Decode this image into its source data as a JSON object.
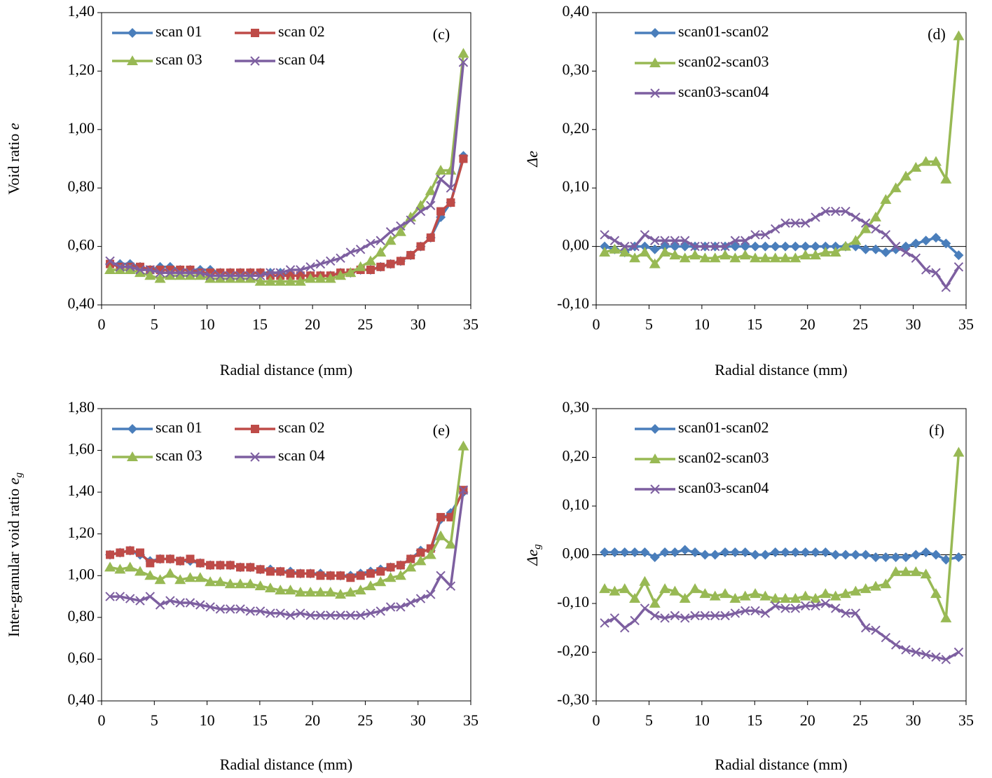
{
  "chart_data": [
    {
      "type": "line",
      "annotation": "(c)",
      "xlabel": "Radial distance (mm)",
      "ylabel": "Void ratio",
      "ylabel_symbol": "e",
      "legend_columns": 2,
      "x": [
        0.8,
        1.75,
        2.7,
        3.65,
        4.6,
        5.55,
        6.5,
        7.45,
        8.4,
        9.35,
        10.3,
        11.25,
        12.2,
        13.15,
        14.1,
        15.05,
        16.0,
        16.95,
        17.9,
        18.85,
        19.8,
        20.75,
        21.7,
        22.65,
        23.6,
        24.55,
        25.5,
        26.45,
        27.4,
        28.35,
        29.3,
        30.25,
        31.2,
        32.15,
        33.1,
        34.3
      ],
      "xlim": [
        0,
        35
      ],
      "xticks": [
        0,
        5,
        10,
        15,
        20,
        25,
        30,
        35
      ],
      "ylim": [
        0.4,
        1.4
      ],
      "yticks": [
        {
          "value": 0.4,
          "label": "0,40"
        },
        {
          "value": 0.6,
          "label": "0,60"
        },
        {
          "value": 0.8,
          "label": "0,80"
        },
        {
          "value": 1.0,
          "label": "1,00"
        },
        {
          "value": 1.2,
          "label": "1,20"
        },
        {
          "value": 1.4,
          "label": "1,40"
        }
      ],
      "series": [
        {
          "name": "scan 01",
          "color": "#4a7ebb",
          "marker": "diamond",
          "values": [
            0.54,
            0.54,
            0.54,
            0.53,
            0.52,
            0.53,
            0.53,
            0.52,
            0.52,
            0.52,
            0.52,
            0.51,
            0.51,
            0.51,
            0.51,
            0.51,
            0.51,
            0.51,
            0.5,
            0.5,
            0.5,
            0.5,
            0.5,
            0.51,
            0.51,
            0.52,
            0.52,
            0.53,
            0.54,
            0.55,
            0.57,
            0.6,
            0.63,
            0.7,
            0.75,
            0.91
          ]
        },
        {
          "name": "scan 02",
          "color": "#be4b48",
          "marker": "square",
          "values": [
            0.54,
            0.53,
            0.53,
            0.53,
            0.52,
            0.52,
            0.52,
            0.52,
            0.52,
            0.51,
            0.51,
            0.51,
            0.51,
            0.51,
            0.51,
            0.51,
            0.5,
            0.5,
            0.5,
            0.5,
            0.5,
            0.5,
            0.5,
            0.51,
            0.51,
            0.52,
            0.52,
            0.53,
            0.54,
            0.55,
            0.57,
            0.6,
            0.63,
            0.72,
            0.75,
            0.9
          ]
        },
        {
          "name": "scan 03",
          "color": "#98b954",
          "marker": "triangle",
          "values": [
            0.52,
            0.52,
            0.52,
            0.51,
            0.5,
            0.49,
            0.5,
            0.5,
            0.5,
            0.5,
            0.49,
            0.49,
            0.49,
            0.49,
            0.49,
            0.48,
            0.48,
            0.48,
            0.48,
            0.48,
            0.49,
            0.49,
            0.49,
            0.5,
            0.51,
            0.53,
            0.55,
            0.58,
            0.62,
            0.65,
            0.7,
            0.74,
            0.79,
            0.86,
            0.86,
            1.26
          ]
        },
        {
          "name": "scan 04",
          "color": "#7d5fa0",
          "marker": "x",
          "values": [
            0.55,
            0.53,
            0.53,
            0.52,
            0.52,
            0.51,
            0.51,
            0.51,
            0.51,
            0.51,
            0.5,
            0.5,
            0.5,
            0.5,
            0.5,
            0.5,
            0.51,
            0.51,
            0.52,
            0.52,
            0.53,
            0.54,
            0.55,
            0.56,
            0.58,
            0.59,
            0.61,
            0.62,
            0.65,
            0.67,
            0.69,
            0.72,
            0.74,
            0.83,
            0.8,
            1.23
          ]
        }
      ]
    },
    {
      "type": "line",
      "annotation": "(d)",
      "xlabel": "Radial distance (mm)",
      "ylabel_symbol": "Δe",
      "legend_columns": 1,
      "x": [
        0.8,
        1.75,
        2.7,
        3.65,
        4.6,
        5.55,
        6.5,
        7.45,
        8.4,
        9.35,
        10.3,
        11.25,
        12.2,
        13.15,
        14.1,
        15.05,
        16.0,
        16.95,
        17.9,
        18.85,
        19.8,
        20.75,
        21.7,
        22.65,
        23.6,
        24.55,
        25.5,
        26.45,
        27.4,
        28.35,
        29.3,
        30.25,
        31.2,
        32.15,
        33.1,
        34.3
      ],
      "xlim": [
        0,
        35
      ],
      "xticks": [
        0,
        5,
        10,
        15,
        20,
        25,
        30,
        35
      ],
      "ylim": [
        -0.1,
        0.4
      ],
      "yticks": [
        {
          "value": -0.1,
          "label": "-0,10"
        },
        {
          "value": 0,
          "label": "0,00"
        },
        {
          "value": 0.1,
          "label": "0,10"
        },
        {
          "value": 0.2,
          "label": "0,20"
        },
        {
          "value": 0.3,
          "label": "0,30"
        },
        {
          "value": 0.4,
          "label": "0,40"
        }
      ],
      "series": [
        {
          "name": "scan01-scan02",
          "color": "#4a7ebb",
          "marker": "diamond",
          "values": [
            0,
            -0.005,
            -0.01,
            0,
            0,
            -0.005,
            0,
            0,
            0,
            0,
            0,
            0,
            0,
            0,
            0,
            0,
            0,
            0,
            0,
            0,
            0,
            0,
            0,
            0,
            0,
            0,
            -0.005,
            -0.005,
            -0.01,
            -0.005,
            0,
            0.005,
            0.01,
            0.015,
            0.005,
            -0.015
          ]
        },
        {
          "name": "scan02-scan03",
          "color": "#98b954",
          "marker": "triangle",
          "values": [
            -0.01,
            -0.005,
            -0.01,
            -0.02,
            -0.01,
            -0.03,
            -0.01,
            -0.015,
            -0.02,
            -0.015,
            -0.02,
            -0.02,
            -0.015,
            -0.02,
            -0.015,
            -0.02,
            -0.02,
            -0.02,
            -0.02,
            -0.02,
            -0.015,
            -0.015,
            -0.01,
            -0.01,
            0,
            0.01,
            0.03,
            0.05,
            0.08,
            0.1,
            0.12,
            0.135,
            0.145,
            0.145,
            0.115,
            0.36
          ]
        },
        {
          "name": "scan03-scan04",
          "color": "#7d5fa0",
          "marker": "x",
          "values": [
            0.02,
            0.01,
            0,
            0,
            0.02,
            0.01,
            0.01,
            0.01,
            0.01,
            0,
            0,
            0,
            0,
            0.01,
            0.01,
            0.02,
            0.02,
            0.03,
            0.04,
            0.04,
            0.04,
            0.05,
            0.06,
            0.06,
            0.06,
            0.05,
            0.04,
            0.03,
            0.02,
            0,
            -0.01,
            -0.02,
            -0.04,
            -0.045,
            -0.07,
            -0.035
          ]
        }
      ]
    },
    {
      "type": "line",
      "annotation": "(e)",
      "xlabel": "Radial distance (mm)",
      "ylabel": "Inter-granular void ratio",
      "ylabel_symbol": "e",
      "ylabel_subscript": "g",
      "legend_columns": 2,
      "x": [
        0.8,
        1.75,
        2.7,
        3.65,
        4.6,
        5.55,
        6.5,
        7.45,
        8.4,
        9.35,
        10.3,
        11.25,
        12.2,
        13.15,
        14.1,
        15.05,
        16.0,
        16.95,
        17.9,
        18.85,
        19.8,
        20.75,
        21.7,
        22.65,
        23.6,
        24.55,
        25.5,
        26.45,
        27.4,
        28.35,
        29.3,
        30.25,
        31.2,
        32.15,
        33.1,
        34.3
      ],
      "xlim": [
        0,
        35
      ],
      "xticks": [
        0,
        5,
        10,
        15,
        20,
        25,
        30,
        35
      ],
      "ylim": [
        0.4,
        1.8
      ],
      "yticks": [
        {
          "value": 0.4,
          "label": "0,40"
        },
        {
          "value": 0.6,
          "label": "0,60"
        },
        {
          "value": 0.8,
          "label": "0,80"
        },
        {
          "value": 1.0,
          "label": "1,00"
        },
        {
          "value": 1.2,
          "label": "1,20"
        },
        {
          "value": 1.4,
          "label": "1,40"
        },
        {
          "value": 1.6,
          "label": "1,60"
        },
        {
          "value": 1.8,
          "label": "1,80"
        }
      ],
      "series": [
        {
          "name": "scan 01",
          "color": "#4a7ebb",
          "marker": "diamond",
          "values": [
            1.1,
            1.11,
            1.12,
            1.1,
            1.07,
            1.08,
            1.08,
            1.07,
            1.07,
            1.06,
            1.05,
            1.05,
            1.05,
            1.04,
            1.04,
            1.03,
            1.03,
            1.02,
            1.02,
            1.01,
            1.01,
            1.01,
            1.0,
            1.0,
            1.0,
            1.01,
            1.02,
            1.03,
            1.04,
            1.05,
            1.08,
            1.12,
            1.12,
            1.27,
            1.3,
            1.4
          ]
        },
        {
          "name": "scan 02",
          "color": "#be4b48",
          "marker": "square",
          "values": [
            1.1,
            1.11,
            1.12,
            1.11,
            1.06,
            1.08,
            1.08,
            1.07,
            1.08,
            1.06,
            1.05,
            1.05,
            1.05,
            1.04,
            1.04,
            1.03,
            1.02,
            1.02,
            1.01,
            1.01,
            1.01,
            1.0,
            1.0,
            1.0,
            0.99,
            1.0,
            1.01,
            1.02,
            1.04,
            1.05,
            1.08,
            1.11,
            1.13,
            1.28,
            1.28,
            1.41
          ]
        },
        {
          "name": "scan 03",
          "color": "#98b954",
          "marker": "triangle",
          "values": [
            1.04,
            1.03,
            1.04,
            1.02,
            1.0,
            0.98,
            1.01,
            0.98,
            0.99,
            0.99,
            0.97,
            0.97,
            0.96,
            0.96,
            0.96,
            0.95,
            0.94,
            0.93,
            0.93,
            0.92,
            0.92,
            0.92,
            0.92,
            0.91,
            0.92,
            0.93,
            0.95,
            0.97,
            0.99,
            1.0,
            1.04,
            1.07,
            1.1,
            1.19,
            1.15,
            1.62
          ]
        },
        {
          "name": "scan 04",
          "color": "#7d5fa0",
          "marker": "x",
          "values": [
            0.9,
            0.9,
            0.89,
            0.88,
            0.9,
            0.86,
            0.88,
            0.87,
            0.87,
            0.86,
            0.85,
            0.84,
            0.84,
            0.84,
            0.83,
            0.83,
            0.82,
            0.82,
            0.81,
            0.82,
            0.81,
            0.81,
            0.81,
            0.81,
            0.81,
            0.81,
            0.82,
            0.83,
            0.85,
            0.85,
            0.87,
            0.89,
            0.91,
            1.0,
            0.95,
            1.41
          ]
        }
      ]
    },
    {
      "type": "line",
      "annotation": "(f)",
      "xlabel": "Radial distance (mm)",
      "ylabel_symbol": "Δe",
      "ylabel_subscript": "g",
      "legend_columns": 1,
      "x": [
        0.8,
        1.75,
        2.7,
        3.65,
        4.6,
        5.55,
        6.5,
        7.45,
        8.4,
        9.35,
        10.3,
        11.25,
        12.2,
        13.15,
        14.1,
        15.05,
        16.0,
        16.95,
        17.9,
        18.85,
        19.8,
        20.75,
        21.7,
        22.65,
        23.6,
        24.55,
        25.5,
        26.45,
        27.4,
        28.35,
        29.3,
        30.25,
        31.2,
        32.15,
        33.1,
        34.3
      ],
      "xlim": [
        0,
        35
      ],
      "xticks": [
        0,
        5,
        10,
        15,
        20,
        25,
        30,
        35
      ],
      "ylim": [
        -0.3,
        0.3
      ],
      "yticks": [
        {
          "value": -0.3,
          "label": "-0,30"
        },
        {
          "value": -0.2,
          "label": "-0,20"
        },
        {
          "value": -0.1,
          "label": "-0,10"
        },
        {
          "value": 0,
          "label": "0,00"
        },
        {
          "value": 0.1,
          "label": "0,10"
        },
        {
          "value": 0.2,
          "label": "0,20"
        },
        {
          "value": 0.3,
          "label": "0,30"
        }
      ],
      "series": [
        {
          "name": "scan01-scan02",
          "color": "#4a7ebb",
          "marker": "diamond",
          "values": [
            0.005,
            0.005,
            0.005,
            0.005,
            0.005,
            -0.005,
            0.005,
            0.005,
            0.01,
            0.005,
            0,
            0,
            0.005,
            0.005,
            0.005,
            0,
            0,
            0.005,
            0.005,
            0.005,
            0.005,
            0.005,
            0.005,
            0,
            0,
            0,
            0,
            -0.005,
            -0.005,
            -0.005,
            -0.005,
            0,
            0.005,
            0,
            -0.01,
            -0.005
          ]
        },
        {
          "name": "scan02-scan03",
          "color": "#98b954",
          "marker": "triangle",
          "values": [
            -0.07,
            -0.075,
            -0.07,
            -0.09,
            -0.055,
            -0.1,
            -0.07,
            -0.075,
            -0.09,
            -0.07,
            -0.08,
            -0.085,
            -0.08,
            -0.09,
            -0.085,
            -0.08,
            -0.085,
            -0.09,
            -0.09,
            -0.09,
            -0.085,
            -0.09,
            -0.08,
            -0.085,
            -0.08,
            -0.075,
            -0.07,
            -0.065,
            -0.06,
            -0.035,
            -0.035,
            -0.035,
            -0.04,
            -0.08,
            -0.13,
            0.21
          ]
        },
        {
          "name": "scan03-scan04",
          "color": "#7d5fa0",
          "marker": "x",
          "values": [
            -0.14,
            -0.13,
            -0.15,
            -0.135,
            -0.11,
            -0.125,
            -0.13,
            -0.125,
            -0.13,
            -0.125,
            -0.125,
            -0.125,
            -0.125,
            -0.12,
            -0.115,
            -0.115,
            -0.12,
            -0.105,
            -0.11,
            -0.11,
            -0.105,
            -0.105,
            -0.1,
            -0.11,
            -0.12,
            -0.12,
            -0.15,
            -0.155,
            -0.17,
            -0.185,
            -0.195,
            -0.2,
            -0.205,
            -0.21,
            -0.215,
            -0.2
          ]
        }
      ]
    }
  ]
}
